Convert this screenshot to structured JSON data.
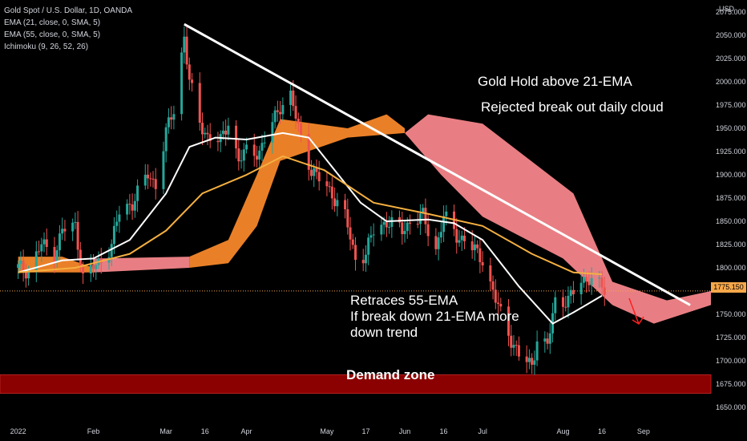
{
  "legend": {
    "symbol": "Gold Spot / U.S. Dollar, 1D, OANDA",
    "ema21": "EMA (21, close, 0, SMA, 5)",
    "ema55": "EMA (55, close, 0, SMA, 5)",
    "ichimoku": "Ichimoku (9, 26, 52, 26)"
  },
  "currency": "USD",
  "last_price": "1775.150",
  "annotations": {
    "line1": "Gold Hold above 21-EMA",
    "line2": "Rejected break out daily cloud",
    "retrace1": "Retraces 55-EMA",
    "retrace2": "If break down 21-EMA more",
    "retrace3": "down trend",
    "demand": "Demand zone"
  },
  "colors": {
    "background": "#000000",
    "up_candle": "#26a69a",
    "down_candle": "#ef5350",
    "ema21": "#ffffff",
    "ema55": "#f5b041",
    "cloud_bull": "#f5872a",
    "cloud_bear": "#f4858a",
    "demand_zone": "#8b0000",
    "trendline": "#ffffff",
    "arrow": "#ff2020"
  },
  "chart_data": {
    "type": "candlestick",
    "title": "Gold Spot / U.S. Dollar, 1D, OANDA",
    "y_axis_label": "USD",
    "y_ticks": [
      1650,
      1675,
      1700,
      1725,
      1750,
      1775,
      1800,
      1825,
      1850,
      1875,
      1900,
      1925,
      1950,
      1975,
      2000,
      2025,
      2050,
      2075
    ],
    "y_tick_labels": [
      "1650.000",
      "1675.000",
      "1700.000",
      "1725.000",
      "1750.000",
      "",
      "1800.000",
      "1825.000",
      "1850.000",
      "1875.000",
      "1900.000",
      "1925.000",
      "1950.000",
      "1975.000",
      "2000.000",
      "2025.000",
      "2050.000",
      "2075.000"
    ],
    "ylim": [
      1631,
      2088
    ],
    "x_labels": [
      "2022",
      "Feb",
      "Mar",
      "16",
      "Apr",
      "May",
      "17",
      "Jun",
      "16",
      "Jul",
      "Aug",
      "16",
      "Sep"
    ],
    "x_label_dates": [
      "2022-01-03",
      "2022-02-01",
      "2022-03-01",
      "2022-03-16",
      "2022-04-01",
      "2022-05-02",
      "2022-05-17",
      "2022-06-01",
      "2022-06-16",
      "2022-07-01",
      "2022-08-01",
      "2022-08-16",
      "2022-09-01"
    ],
    "xlim": [
      "2021-12-27",
      "2022-09-27"
    ],
    "last_price": 1775.15,
    "close_path": [
      [
        "2022-01-03",
        1800
      ],
      [
        "2022-01-07",
        1797
      ],
      [
        "2022-01-12",
        1825
      ],
      [
        "2022-01-17",
        1815
      ],
      [
        "2022-01-20",
        1840
      ],
      [
        "2022-01-25",
        1845
      ],
      [
        "2022-01-28",
        1790
      ],
      [
        "2022-02-03",
        1805
      ],
      [
        "2022-02-08",
        1825
      ],
      [
        "2022-02-11",
        1860
      ],
      [
        "2022-02-16",
        1870
      ],
      [
        "2022-02-22",
        1900
      ],
      [
        "2022-02-25",
        1890
      ],
      [
        "2022-03-01",
        1945
      ],
      [
        "2022-03-04",
        1970
      ],
      [
        "2022-03-08",
        2050
      ],
      [
        "2022-03-10",
        2000
      ],
      [
        "2022-03-14",
        1955
      ],
      [
        "2022-03-17",
        1942
      ],
      [
        "2022-03-22",
        1935
      ],
      [
        "2022-03-25",
        1958
      ],
      [
        "2022-03-29",
        1915
      ],
      [
        "2022-04-01",
        1925
      ],
      [
        "2022-04-06",
        1925
      ],
      [
        "2022-04-11",
        1955
      ],
      [
        "2022-04-14",
        1975
      ],
      [
        "2022-04-18",
        1985
      ],
      [
        "2022-04-21",
        1950
      ],
      [
        "2022-04-26",
        1905
      ],
      [
        "2022-04-29",
        1895
      ],
      [
        "2022-05-04",
        1880
      ],
      [
        "2022-05-09",
        1855
      ],
      [
        "2022-05-13",
        1810
      ],
      [
        "2022-05-17",
        1815
      ],
      [
        "2022-05-20",
        1840
      ],
      [
        "2022-05-25",
        1850
      ],
      [
        "2022-05-31",
        1840
      ],
      [
        "2022-06-03",
        1850
      ],
      [
        "2022-06-08",
        1855
      ],
      [
        "2022-06-13",
        1820
      ],
      [
        "2022-06-16",
        1855
      ],
      [
        "2022-06-21",
        1835
      ],
      [
        "2022-06-24",
        1830
      ],
      [
        "2022-06-29",
        1815
      ],
      [
        "2022-07-01",
        1810
      ],
      [
        "2022-07-06",
        1765
      ],
      [
        "2022-07-11",
        1730
      ],
      [
        "2022-07-15",
        1705
      ],
      [
        "2022-07-20",
        1695
      ],
      [
        "2022-07-22",
        1725
      ],
      [
        "2022-07-26",
        1715
      ],
      [
        "2022-07-29",
        1765
      ],
      [
        "2022-08-03",
        1765
      ],
      [
        "2022-08-08",
        1785
      ],
      [
        "2022-08-11",
        1790
      ],
      [
        "2022-08-15",
        1780
      ],
      [
        "2022-08-17",
        1775
      ]
    ],
    "series": [
      {
        "name": "EMA (21, close, 0, SMA, 5)",
        "points": [
          [
            "2022-01-03",
            1795
          ],
          [
            "2022-01-20",
            1808
          ],
          [
            "2022-02-01",
            1810
          ],
          [
            "2022-02-15",
            1830
          ],
          [
            "2022-03-01",
            1880
          ],
          [
            "2022-03-10",
            1930
          ],
          [
            "2022-03-20",
            1940
          ],
          [
            "2022-04-01",
            1938
          ],
          [
            "2022-04-15",
            1945
          ],
          [
            "2022-04-25",
            1940
          ],
          [
            "2022-05-05",
            1905
          ],
          [
            "2022-05-15",
            1870
          ],
          [
            "2022-05-25",
            1850
          ],
          [
            "2022-06-10",
            1852
          ],
          [
            "2022-06-20",
            1848
          ],
          [
            "2022-07-01",
            1830
          ],
          [
            "2022-07-15",
            1780
          ],
          [
            "2022-07-28",
            1740
          ],
          [
            "2022-08-05",
            1752
          ],
          [
            "2022-08-16",
            1770
          ]
        ]
      },
      {
        "name": "EMA (55, close, 0, SMA, 5)",
        "points": [
          [
            "2022-01-03",
            1795
          ],
          [
            "2022-01-25",
            1800
          ],
          [
            "2022-02-15",
            1815
          ],
          [
            "2022-03-01",
            1840
          ],
          [
            "2022-03-15",
            1880
          ],
          [
            "2022-04-01",
            1900
          ],
          [
            "2022-04-15",
            1920
          ],
          [
            "2022-05-01",
            1905
          ],
          [
            "2022-05-20",
            1870
          ],
          [
            "2022-06-10",
            1858
          ],
          [
            "2022-07-01",
            1845
          ],
          [
            "2022-07-20",
            1815
          ],
          [
            "2022-08-05",
            1795
          ],
          [
            "2022-08-16",
            1793
          ]
        ]
      }
    ],
    "cloud": [
      {
        "type": "bull",
        "points_top": [
          [
            "2022-01-03",
            1812
          ],
          [
            "2022-01-20",
            1812
          ],
          [
            "2022-02-01",
            1800
          ]
        ],
        "points_bottom": [
          [
            "2022-01-03",
            1795
          ],
          [
            "2022-02-01",
            1795
          ]
        ]
      },
      {
        "type": "bear",
        "points_top": [
          [
            "2022-02-01",
            1810
          ],
          [
            "2022-03-10",
            1812
          ]
        ],
        "points_bottom": [
          [
            "2022-02-01",
            1795
          ],
          [
            "2022-03-10",
            1800
          ]
        ]
      },
      {
        "type": "bull",
        "points_top": [
          [
            "2022-03-10",
            1812
          ],
          [
            "2022-03-25",
            1830
          ],
          [
            "2022-04-05",
            1900
          ],
          [
            "2022-04-14",
            1960
          ],
          [
            "2022-05-10",
            1950
          ],
          [
            "2022-05-25",
            1965
          ],
          [
            "2022-06-01",
            1950
          ]
        ],
        "points_bottom": [
          [
            "2022-03-10",
            1800
          ],
          [
            "2022-03-25",
            1805
          ],
          [
            "2022-04-05",
            1845
          ],
          [
            "2022-04-14",
            1915
          ],
          [
            "2022-05-10",
            1940
          ],
          [
            "2022-06-01",
            1945
          ]
        ]
      },
      {
        "type": "bear",
        "points_top": [
          [
            "2022-06-01",
            1945
          ],
          [
            "2022-06-10",
            1965
          ],
          [
            "2022-07-01",
            1955
          ],
          [
            "2022-08-05",
            1880
          ],
          [
            "2022-08-20",
            1785
          ],
          [
            "2022-09-10",
            1765
          ],
          [
            "2022-09-27",
            1775
          ]
        ],
        "points_bottom": [
          [
            "2022-06-01",
            1945
          ],
          [
            "2022-06-15",
            1900
          ],
          [
            "2022-07-01",
            1855
          ],
          [
            "2022-08-01",
            1810
          ],
          [
            "2022-08-20",
            1760
          ],
          [
            "2022-09-05",
            1740
          ],
          [
            "2022-09-27",
            1760
          ]
        ]
      }
    ],
    "trendline": [
      [
        "2022-03-08",
        2062
      ],
      [
        "2022-09-19",
        1760
      ]
    ],
    "demand_zone": [
      1665,
      1685
    ]
  }
}
